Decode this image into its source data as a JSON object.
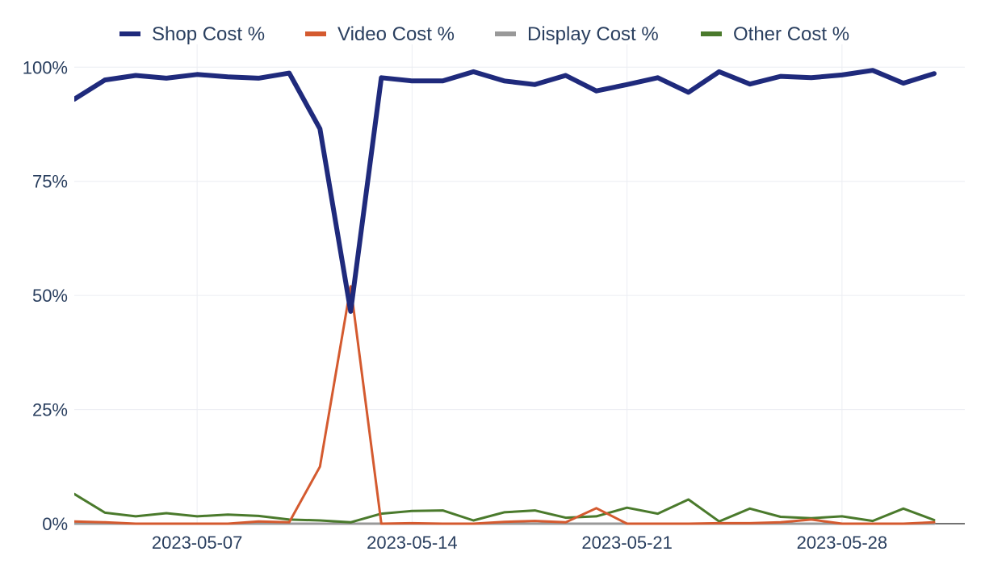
{
  "chart_data": {
    "type": "line",
    "title": "",
    "xlabel": "",
    "ylabel": "",
    "grid": true,
    "legend_position": "top",
    "x": [
      "2023-05-03",
      "2023-05-04",
      "2023-05-05",
      "2023-05-06",
      "2023-05-07",
      "2023-05-08",
      "2023-05-09",
      "2023-05-10",
      "2023-05-11",
      "2023-05-12",
      "2023-05-13",
      "2023-05-14",
      "2023-05-15",
      "2023-05-16",
      "2023-05-17",
      "2023-05-18",
      "2023-05-19",
      "2023-05-20",
      "2023-05-21",
      "2023-05-22",
      "2023-05-23",
      "2023-05-24",
      "2023-05-25",
      "2023-05-26",
      "2023-05-27",
      "2023-05-28",
      "2023-05-29",
      "2023-05-30",
      "2023-05-31"
    ],
    "x_ticks": [
      "2023-05-07",
      "2023-05-14",
      "2023-05-21",
      "2023-05-28"
    ],
    "x_range": [
      "2023-05-03",
      "2023-06-01"
    ],
    "ylim": [
      0,
      1.05
    ],
    "y_ticks": [
      0,
      0.25,
      0.5,
      0.75,
      1.0
    ],
    "y_tick_labels": [
      "0%",
      "25%",
      "50%",
      "75%",
      "100%"
    ],
    "series": [
      {
        "name": "Shop Cost %",
        "color": "#1f2a7c",
        "values": [
          0.93,
          0.972,
          0.982,
          0.976,
          0.984,
          0.979,
          0.976,
          0.987,
          0.865,
          0.465,
          0.977,
          0.97,
          0.97,
          0.99,
          0.97,
          0.962,
          0.982,
          0.948,
          0.962,
          0.977,
          0.945,
          0.99,
          0.963,
          0.98,
          0.977,
          0.983,
          0.993,
          0.965,
          0.986
        ]
      },
      {
        "name": "Video Cost %",
        "color": "#d45a2f",
        "values": [
          0.005,
          0.003,
          0.0,
          0.0,
          0.0,
          0.0,
          0.005,
          0.003,
          0.125,
          0.52,
          0.0,
          0.001,
          0.0,
          0.0,
          0.004,
          0.006,
          0.003,
          0.034,
          0.0,
          0.0,
          0.0,
          0.001,
          0.001,
          0.003,
          0.009,
          0.0,
          0.0,
          0.0,
          0.003
        ]
      },
      {
        "name": "Display Cost %",
        "color": "#999999",
        "values": [
          0,
          0,
          0,
          0,
          0,
          0,
          0,
          0,
          0,
          0,
          0,
          0,
          0,
          0,
          0,
          0,
          0,
          0,
          0,
          0,
          0,
          0,
          0,
          0,
          0,
          0,
          0,
          0,
          0
        ]
      },
      {
        "name": "Other Cost %",
        "color": "#4a7a2c",
        "values": [
          0.065,
          0.024,
          0.016,
          0.023,
          0.016,
          0.02,
          0.017,
          0.009,
          0.007,
          0.003,
          0.022,
          0.028,
          0.029,
          0.007,
          0.025,
          0.029,
          0.013,
          0.016,
          0.035,
          0.022,
          0.053,
          0.005,
          0.033,
          0.015,
          0.012,
          0.016,
          0.006,
          0.033,
          0.008
        ]
      }
    ]
  }
}
